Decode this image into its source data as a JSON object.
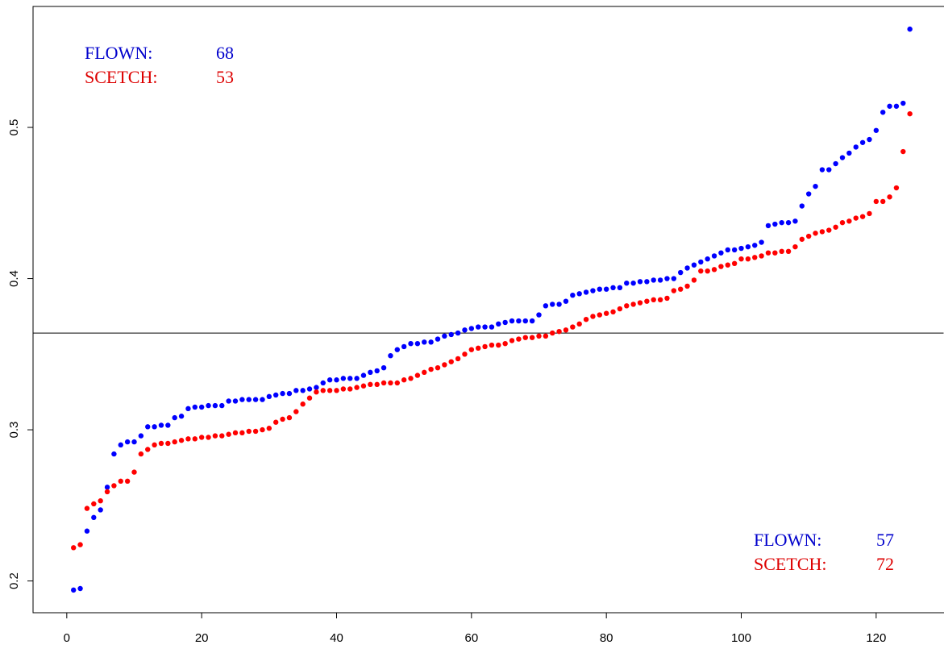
{
  "chart_data": {
    "type": "scatter",
    "x": [
      1,
      2,
      3,
      4,
      5,
      6,
      7,
      8,
      9,
      10,
      11,
      12,
      13,
      14,
      15,
      16,
      17,
      18,
      19,
      20,
      21,
      22,
      23,
      24,
      25,
      26,
      27,
      28,
      29,
      30,
      31,
      32,
      33,
      34,
      35,
      36,
      37,
      38,
      39,
      40,
      41,
      42,
      43,
      44,
      45,
      46,
      47,
      48,
      49,
      50,
      51,
      52,
      53,
      54,
      55,
      56,
      57,
      58,
      59,
      60,
      61,
      62,
      63,
      64,
      65,
      66,
      67,
      68,
      69,
      70,
      71,
      72,
      73,
      74,
      75,
      76,
      77,
      78,
      79,
      80,
      81,
      82,
      83,
      84,
      85,
      86,
      87,
      88,
      89,
      90,
      91,
      92,
      93,
      94,
      95,
      96,
      97,
      98,
      99,
      100,
      101,
      102,
      103,
      104,
      105,
      106,
      107,
      108,
      109,
      110,
      111,
      112,
      113,
      114,
      115,
      116,
      117,
      118,
      119,
      120,
      121,
      122,
      123,
      124,
      125
    ],
    "series": [
      {
        "color": "#0000ff",
        "values": [
          0.194,
          0.195,
          0.233,
          0.242,
          0.247,
          0.262,
          0.284,
          0.29,
          0.292,
          0.292,
          0.296,
          0.302,
          0.302,
          0.303,
          0.303,
          0.308,
          0.309,
          0.314,
          0.315,
          0.315,
          0.316,
          0.316,
          0.316,
          0.319,
          0.319,
          0.32,
          0.32,
          0.32,
          0.32,
          0.322,
          0.323,
          0.324,
          0.324,
          0.326,
          0.326,
          0.327,
          0.328,
          0.331,
          0.333,
          0.333,
          0.334,
          0.334,
          0.334,
          0.336,
          0.338,
          0.339,
          0.341,
          0.349,
          0.353,
          0.355,
          0.357,
          0.357,
          0.358,
          0.358,
          0.36,
          0.362,
          0.363,
          0.364,
          0.366,
          0.367,
          0.368,
          0.368,
          0.368,
          0.37,
          0.371,
          0.372,
          0.372,
          0.372,
          0.372,
          0.376,
          0.382,
          0.383,
          0.383,
          0.385,
          0.389,
          0.39,
          0.391,
          0.392,
          0.393,
          0.393,
          0.394,
          0.394,
          0.397,
          0.397,
          0.398,
          0.398,
          0.399,
          0.399,
          0.4,
          0.4,
          0.404,
          0.407,
          0.409,
          0.411,
          0.413,
          0.415,
          0.417,
          0.419,
          0.419,
          0.42,
          0.421,
          0.422,
          0.424,
          0.435,
          0.436,
          0.437,
          0.437,
          0.438,
          0.448,
          0.456,
          0.461,
          0.472,
          0.472,
          0.476,
          0.48,
          0.483,
          0.487,
          0.49,
          0.492,
          0.498,
          0.51,
          0.514,
          0.514,
          0.516,
          0.565
        ]
      },
      {
        "color": "#ff0000",
        "values": [
          0.222,
          0.224,
          0.248,
          0.251,
          0.253,
          0.259,
          0.263,
          0.266,
          0.266,
          0.272,
          0.284,
          0.287,
          0.29,
          0.291,
          0.291,
          0.292,
          0.293,
          0.294,
          0.294,
          0.295,
          0.295,
          0.296,
          0.296,
          0.297,
          0.298,
          0.298,
          0.299,
          0.299,
          0.3,
          0.301,
          0.305,
          0.307,
          0.308,
          0.312,
          0.317,
          0.321,
          0.325,
          0.326,
          0.326,
          0.326,
          0.327,
          0.327,
          0.328,
          0.329,
          0.33,
          0.33,
          0.331,
          0.331,
          0.331,
          0.333,
          0.334,
          0.336,
          0.338,
          0.34,
          0.341,
          0.343,
          0.345,
          0.347,
          0.35,
          0.353,
          0.354,
          0.355,
          0.356,
          0.356,
          0.357,
          0.359,
          0.36,
          0.361,
          0.361,
          0.362,
          0.362,
          0.364,
          0.365,
          0.366,
          0.368,
          0.37,
          0.373,
          0.375,
          0.376,
          0.377,
          0.378,
          0.38,
          0.382,
          0.383,
          0.384,
          0.385,
          0.386,
          0.386,
          0.387,
          0.392,
          0.393,
          0.395,
          0.399,
          0.405,
          0.405,
          0.406,
          0.408,
          0.409,
          0.41,
          0.413,
          0.413,
          0.414,
          0.415,
          0.417,
          0.417,
          0.418,
          0.418,
          0.421,
          0.426,
          0.428,
          0.43,
          0.431,
          0.432,
          0.434,
          0.437,
          0.438,
          0.44,
          0.441,
          0.443,
          0.451,
          0.451,
          0.454,
          0.46,
          0.484,
          0.509
        ]
      }
    ],
    "xlim": [
      -5,
      130
    ],
    "xticks": [
      0,
      20,
      40,
      60,
      80,
      100,
      120
    ],
    "ylim": [
      0.179,
      0.58
    ],
    "yticks": [
      0.2,
      0.3,
      0.4,
      0.5
    ],
    "hline": 0.364,
    "annotations": [
      [
        {
          "label": "FLOWN:",
          "count": 68,
          "color": "#0000cc"
        },
        {
          "label": "SCETCH:",
          "count": 53,
          "color": "#dd0000"
        }
      ],
      [
        {
          "label": "FLOWN:",
          "count": 57,
          "color": "#0000cc"
        },
        {
          "label": "SCETCH:",
          "count": 72,
          "color": "#dd0000"
        }
      ]
    ]
  }
}
